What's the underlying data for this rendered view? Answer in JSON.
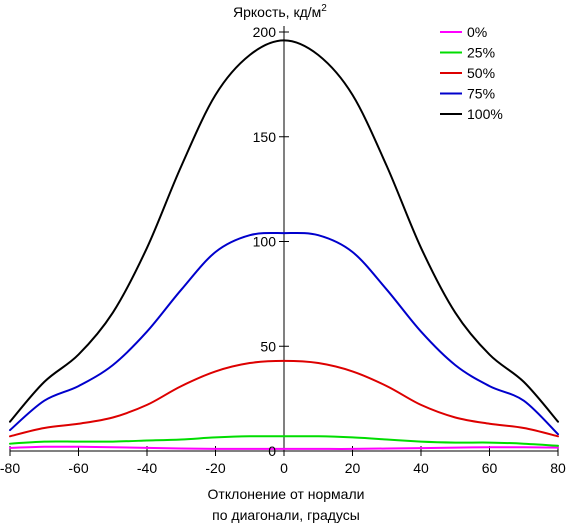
{
  "chart_data": {
    "type": "line",
    "ylabel": "Яркость, кд/м",
    "ylabel_sup": "2",
    "xlabel_line1": "Отклонение от нормали",
    "xlabel_line2": "по диагонали, градусы",
    "xlim": [
      -80,
      80
    ],
    "ylim": [
      0,
      200
    ],
    "x_ticks": [
      -80,
      -60,
      -40,
      -20,
      0,
      20,
      40,
      60,
      80
    ],
    "y_ticks": [
      0,
      50,
      100,
      150,
      200
    ],
    "x_tick_labels": [
      "-80",
      "-60",
      "-40",
      "-20",
      "0",
      "20",
      "40",
      "60",
      "80"
    ],
    "y_tick_labels": [
      "0",
      "50",
      "100",
      "150",
      "200"
    ],
    "grid": false,
    "legend_position": "top-right",
    "x": [
      -80,
      -70,
      -60,
      -50,
      -40,
      -30,
      -20,
      -10,
      0,
      10,
      20,
      30,
      40,
      50,
      60,
      70,
      80
    ],
    "series": [
      {
        "name": "0%",
        "color": "#ff00ff",
        "values": [
          1.5,
          2.0,
          2.0,
          1.8,
          1.5,
          1.2,
          1.0,
          1.0,
          1.0,
          1.0,
          1.0,
          1.2,
          1.4,
          1.6,
          1.8,
          1.8,
          1.6
        ]
      },
      {
        "name": "25%",
        "color": "#00dd00",
        "values": [
          3.5,
          4.5,
          4.5,
          4.5,
          5.0,
          5.5,
          6.5,
          7.0,
          7.0,
          7.0,
          6.5,
          5.5,
          4.5,
          4.0,
          4.0,
          3.5,
          2.5
        ]
      },
      {
        "name": "50%",
        "color": "#dd0000",
        "values": [
          7,
          11,
          13,
          16,
          22,
          31,
          38,
          42,
          43,
          42,
          38,
          31,
          22,
          16,
          13,
          11,
          7
        ]
      },
      {
        "name": "75%",
        "color": "#0000cc",
        "values": [
          10,
          24,
          31,
          41,
          57,
          77,
          95,
          103,
          104,
          103,
          95,
          77,
          57,
          41,
          31,
          24,
          8
        ]
      },
      {
        "name": "100%",
        "color": "#000000",
        "values": [
          14,
          33,
          46,
          66,
          97,
          136,
          170,
          189,
          196,
          189,
          170,
          136,
          97,
          66,
          46,
          33,
          14
        ]
      }
    ]
  }
}
